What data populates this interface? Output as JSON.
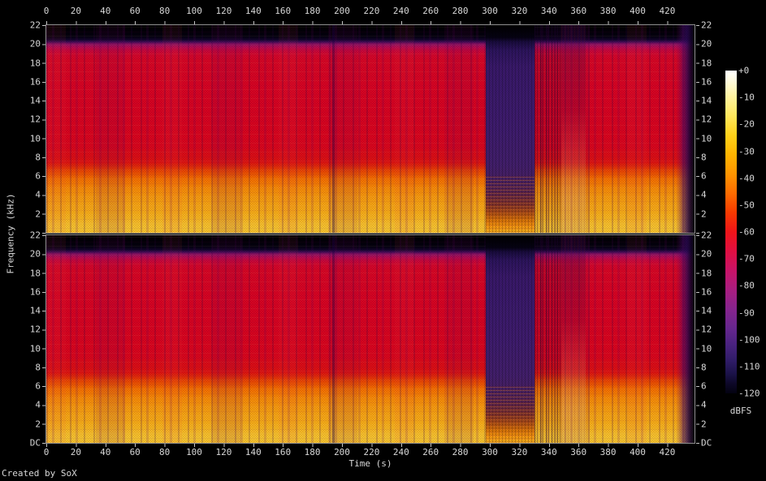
{
  "credit": "Created by SoX",
  "time_axis": {
    "title": "Time (s)",
    "ticks": [
      "0",
      "20",
      "40",
      "60",
      "80",
      "100",
      "120",
      "140",
      "160",
      "180",
      "200",
      "220",
      "240",
      "260",
      "280",
      "300",
      "320",
      "340",
      "360",
      "380",
      "400",
      "420"
    ]
  },
  "freq_axis": {
    "title": "Frequency (kHz)",
    "ticks_upper_panel": [
      "22",
      "20",
      "18",
      "16",
      "14",
      "12",
      "10",
      "8",
      "6",
      "4",
      "2"
    ],
    "ticks_lower_panel": [
      "22",
      "20",
      "18",
      "16",
      "14",
      "12",
      "10",
      "8",
      "6",
      "4",
      "2",
      "DC"
    ]
  },
  "colorbar": {
    "unit": "dBFS",
    "ticks": [
      "+0",
      "-10",
      "-20",
      "-30",
      "-40",
      "-50",
      "-60",
      "-70",
      "-80",
      "-90",
      "-100",
      "-110",
      "-120"
    ]
  },
  "chart_data": {
    "type": "heatmap",
    "subtype": "audio spectrogram rendered by SoX, two channels stacked vertically (upper and lower panel are nearly identical stereo channels)",
    "x": {
      "label": "Time (s)",
      "range": [
        0,
        438
      ],
      "tick_step": 20
    },
    "y": {
      "label": "Frequency (kHz)",
      "range": [
        0,
        22
      ],
      "tick_step": 2,
      "zero_label": "DC"
    },
    "z": {
      "label": "dBFS",
      "range": [
        -120,
        0
      ],
      "tick_step": 10
    },
    "palette_dbfs_to_color": {
      "0": "#ffffff",
      "-10": "#ffe95a",
      "-20": "#ffc100",
      "-30": "#ff8800",
      "-40": "#f1470c",
      "-50": "#ee1030",
      "-60": "#d81a62",
      "-70": "#a61e78",
      "-80": "#7c2492",
      "-90": "#552a8e",
      "-100": "#2e1a6e",
      "-110": "#181043",
      "-120": "#030208"
    },
    "features": [
      {
        "channel": "both",
        "freq_khz": [
          20.4,
          22
        ],
        "time_s": [
          0,
          438
        ],
        "level": "silence (black band) above ~20.4 kHz lowpass/codec cutoff for entire duration"
      },
      {
        "channel": "both",
        "freq_khz": [
          6,
          20.4
        ],
        "time_s": [
          0,
          292
        ],
        "level": "about -45 to -55 dBFS broadband energy (red) with fine vertical beat striping; magenta/purple noise fringe near 20 kHz"
      },
      {
        "channel": "both",
        "freq_khz": [
          0,
          6
        ],
        "time_s": [
          0,
          292
        ],
        "level": "about -20 to -35 dBFS (orange to yellow), strongest below 2 kHz with horizontal harmonic banding"
      },
      {
        "channel": "both",
        "freq_khz": [
          3,
          22
        ],
        "time_s": [
          292,
          325
        ],
        "level": "quiet passage about -85 to -95 dBFS (indigo/purple block)"
      },
      {
        "channel": "both",
        "freq_khz": [
          0,
          3
        ],
        "time_s": [
          292,
          325
        ],
        "level": "residual low-frequency tones about -30 to -50 dBFS (orange/red speckle rows)"
      },
      {
        "channel": "both",
        "freq_khz": [
          0,
          22
        ],
        "time_s": [
          325,
          352
        ],
        "level": "transition: heavy dark vertical striping over red, paler speckled low band around 340-352 s"
      },
      {
        "channel": "both",
        "freq_khz": [
          0,
          22
        ],
        "time_s": [
          352,
          428
        ],
        "level": "loud broadband section resumes (red body, orange/yellow lows)"
      },
      {
        "channel": "both",
        "freq_khz": [
          0,
          22
        ],
        "time_s": [
          428,
          438
        ],
        "level": "fade-out to about -110 dBFS (dark purple then black) at right edge"
      }
    ]
  }
}
